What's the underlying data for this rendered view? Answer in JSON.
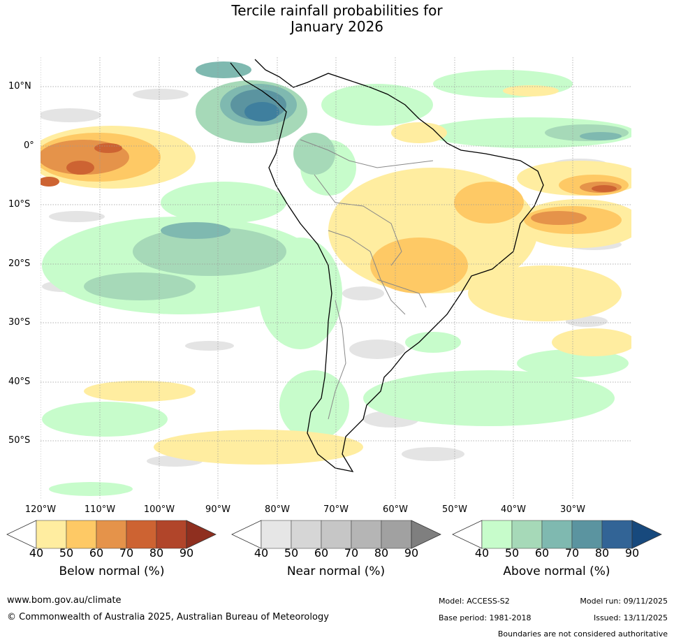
{
  "title_line1": "Tercile rainfall probabilities for",
  "title_line2": "January 2026",
  "lat_labels": [
    "10°N",
    "0°",
    "10°S",
    "20°S",
    "30°S",
    "40°S",
    "50°S"
  ],
  "lon_labels": [
    "120°W",
    "110°W",
    "100°W",
    "90°W",
    "80°W",
    "70°W",
    "60°W",
    "50°W",
    "40°W",
    "30°W"
  ],
  "colorbars": [
    {
      "name": "below",
      "title": "Below normal (%)",
      "ticks": [
        "40",
        "50",
        "60",
        "70",
        "80",
        "90"
      ],
      "colors": [
        "#ffeda0",
        "#fec965",
        "#e5934a",
        "#cd6332",
        "#b1452a",
        "#8f2f1f"
      ]
    },
    {
      "name": "near",
      "title": "Near normal (%)",
      "ticks": [
        "40",
        "50",
        "60",
        "70",
        "80",
        "90"
      ],
      "colors": [
        "#e6e6e6",
        "#d6d6d6",
        "#c6c6c6",
        "#b5b5b5",
        "#a1a1a1",
        "#7f7f7f"
      ]
    },
    {
      "name": "above",
      "title": "Above normal (%)",
      "ticks": [
        "40",
        "50",
        "60",
        "70",
        "80",
        "90"
      ],
      "colors": [
        "#c7fccb",
        "#a6d9b8",
        "#7fb9b0",
        "#5b94a0",
        "#326496",
        "#17497d"
      ]
    }
  ],
  "footer": {
    "website": "www.bom.gov.au/climate",
    "copyright": "© Commonwealth of Australia 2025, Australian Bureau of Meteorology",
    "model": "Model: ACCESS-S2",
    "base_period": "Base period: 1981-2018",
    "model_run": "Model run: 09/11/2025",
    "issued": "Issued: 13/11/2025",
    "disclaimer": "Boundaries are not considered authoritative"
  }
}
